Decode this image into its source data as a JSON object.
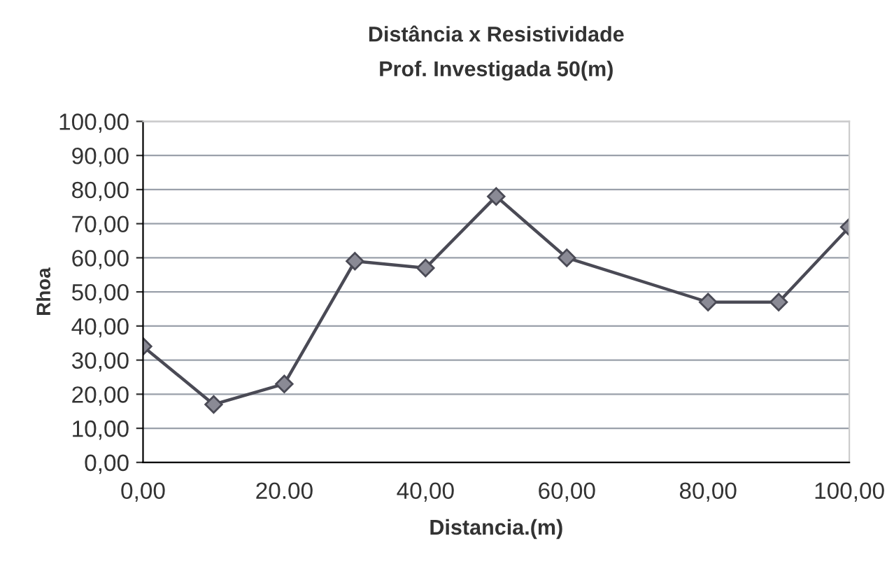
{
  "chart_data": {
    "type": "line",
    "title": "Distância x Resistividade",
    "subtitle": "Prof. Investigada 50(m)",
    "xlabel": "Distancia.(m)",
    "ylabel": "Rhoa",
    "x": [
      0,
      10,
      20,
      30,
      40,
      50,
      60,
      80,
      90,
      100
    ],
    "series": [
      {
        "color": "#4a4a55",
        "values": [
          34,
          17,
          23,
          59,
          57,
          78,
          60,
          47,
          47,
          69
        ]
      }
    ],
    "xlim": [
      0,
      100
    ],
    "xticks": [
      {
        "value": 0,
        "label": "0,00"
      },
      {
        "value": 20,
        "label": "20.00"
      },
      {
        "value": 40,
        "label": "40,00"
      },
      {
        "value": 60,
        "label": "60,00"
      },
      {
        "value": 80,
        "label": "80,00"
      },
      {
        "value": 100,
        "label": "100,00"
      }
    ],
    "ylim": [
      0,
      100
    ],
    "yticks": [
      {
        "value": 0,
        "label": "0,00"
      },
      {
        "value": 10,
        "label": "10,00"
      },
      {
        "value": 20,
        "label": "20,00"
      },
      {
        "value": 30,
        "label": "30,00"
      },
      {
        "value": 40,
        "label": "40,00"
      },
      {
        "value": 50,
        "label": "50,00"
      },
      {
        "value": 60,
        "label": "60,00"
      },
      {
        "value": 70,
        "label": "70,00"
      },
      {
        "value": 80,
        "label": "80,00"
      },
      {
        "value": 90,
        "label": "90,00"
      },
      {
        "value": 100,
        "label": "100,00"
      }
    ],
    "grid": "y",
    "marker": "diamond",
    "line_style": "solid"
  }
}
